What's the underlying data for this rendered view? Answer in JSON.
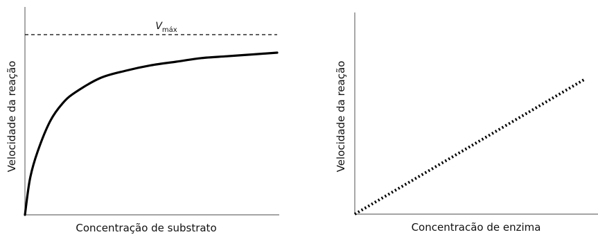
{
  "chart_data": [
    {
      "type": "line",
      "title": "",
      "xlabel": "Concentração de substrato",
      "ylabel": "Velocidade da reação",
      "xlim": [
        0,
        100
      ],
      "ylim": [
        0,
        100
      ],
      "grid": false,
      "series": [
        {
          "x": [
            0,
            2,
            5,
            10,
            15,
            20,
            30,
            40,
            50,
            60,
            70,
            80,
            90,
            100
          ],
          "y": [
            0,
            20,
            35,
            52,
            62,
            68,
            76,
            80,
            83,
            85,
            87,
            88,
            89,
            90
          ],
          "style": "solid",
          "color": "#000000"
        }
      ],
      "annotations": [
        {
          "type": "dashed-horizontal-line",
          "y": 100,
          "label_main": "V",
          "label_sub": "máx"
        }
      ]
    },
    {
      "type": "line",
      "title": "",
      "xlabel": "Concentracão de enzima",
      "ylabel": "Velocidade da reação",
      "xlim": [
        0,
        100
      ],
      "ylim": [
        0,
        100
      ],
      "grid": false,
      "series": [
        {
          "x": [
            0,
            100
          ],
          "y": [
            0,
            70
          ],
          "style": "dotted",
          "color": "#000000"
        }
      ]
    }
  ]
}
